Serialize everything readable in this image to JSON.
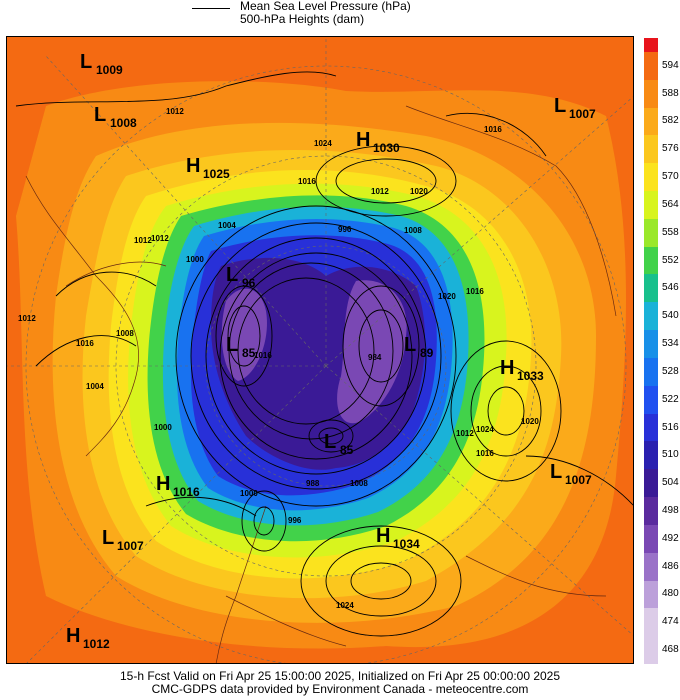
{
  "legend": {
    "mslp_label": "Mean Sea Level Pressure (hPa)",
    "heights_label": "500-hPa Heights (dam)"
  },
  "colorbar": {
    "levels": [
      "594",
      "588",
      "582",
      "576",
      "570",
      "564",
      "558",
      "552",
      "546",
      "540",
      "534",
      "528",
      "522",
      "516",
      "510",
      "504",
      "498",
      "492",
      "486",
      "480",
      "474",
      "468"
    ],
    "colors": [
      "#e8141c",
      "#f46a12",
      "#f88a14",
      "#fbaa1a",
      "#fbc71e",
      "#fbe31e",
      "#d8f41e",
      "#9ae82a",
      "#42d24a",
      "#18c08c",
      "#1ab2d8",
      "#1890e8",
      "#1872f0",
      "#2050f0",
      "#2830d8",
      "#2a20b0",
      "#3a1a96",
      "#5a2a9e",
      "#7a48b4",
      "#9a72c8",
      "#bca0da",
      "#dccce8"
    ]
  },
  "map": {
    "systems": [
      {
        "type": "L",
        "value": "1009"
      },
      {
        "type": "L",
        "value": "1008"
      },
      {
        "type": "H",
        "value": "1025"
      },
      {
        "type": "H",
        "value": "1030"
      },
      {
        "type": "L",
        "value": "1007"
      },
      {
        "type": "L",
        "value": "96"
      },
      {
        "type": "L",
        "value": "85"
      },
      {
        "type": "L",
        "value": "89"
      },
      {
        "type": "H",
        "value": "1033"
      },
      {
        "type": "L",
        "value": "85"
      },
      {
        "type": "H",
        "value": "1016"
      },
      {
        "type": "L",
        "value": "1007"
      },
      {
        "type": "L",
        "value": "1007"
      },
      {
        "type": "H",
        "value": "1034"
      },
      {
        "type": "H",
        "value": "1012"
      }
    ],
    "isobar_labels": [
      "1012",
      "1024",
      "1016",
      "1012",
      "1020",
      "1016",
      "1012",
      "996",
      "1004",
      "1008",
      "1012",
      "1016",
      "1020",
      "1008",
      "1000",
      "1016",
      "1012",
      "1000",
      "1016",
      "1004",
      "1000",
      "988",
      "996",
      "1024",
      "1020",
      "1016",
      "1008",
      "1024",
      "984",
      "1012"
    ]
  },
  "footer": {
    "line1": "15-h Fcst Valid on Fri Apr 25 15:00:00 2025, Initialized on Fri Apr 25 00:00:00 2025",
    "line2": "CMC-GDPS data provided by Environment Canada - meteocentre.com"
  }
}
